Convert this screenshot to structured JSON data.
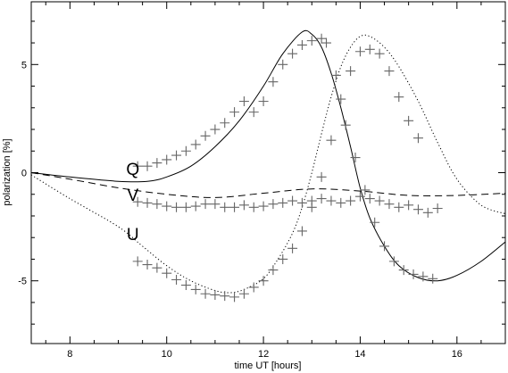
{
  "chart_data": {
    "type": "line",
    "title": "",
    "xlabel": "time UT [hours]",
    "ylabel": "polarization [%]",
    "xlim": [
      7.2,
      17.0
    ],
    "ylim": [
      -7.9,
      7.9
    ],
    "x_ticks": [
      8,
      10,
      12,
      14,
      16
    ],
    "y_ticks": [
      -5,
      0,
      5
    ],
    "x_tick_labels": [
      "8",
      "10",
      "12",
      "14",
      "16"
    ],
    "y_tick_labels": [
      "-5",
      "0",
      "5"
    ],
    "grid": false,
    "legend": "none",
    "curve_labels": [
      {
        "text": "Q",
        "x": 9.3,
        "y": 0.1
      },
      {
        "text": "V",
        "x": 9.3,
        "y": -1.1
      },
      {
        "text": "U",
        "x": 9.3,
        "y": -2.9
      }
    ],
    "series": [
      {
        "kind": "model",
        "style": "solid",
        "points": [
          [
            7.2,
            0.0
          ],
          [
            8.0,
            -0.2
          ],
          [
            9.0,
            -0.4
          ],
          [
            9.6,
            -0.4
          ],
          [
            10.0,
            -0.2
          ],
          [
            10.5,
            0.3
          ],
          [
            11.0,
            1.2
          ],
          [
            11.5,
            2.4
          ],
          [
            12.0,
            4.0
          ],
          [
            12.4,
            5.5
          ],
          [
            12.8,
            6.5
          ],
          [
            13.0,
            6.4
          ],
          [
            13.2,
            5.8
          ],
          [
            13.4,
            4.6
          ],
          [
            13.6,
            3.0
          ],
          [
            13.8,
            1.2
          ],
          [
            14.0,
            -0.7
          ],
          [
            14.2,
            -2.1
          ],
          [
            14.5,
            -3.4
          ],
          [
            14.8,
            -4.3
          ],
          [
            15.2,
            -4.85
          ],
          [
            15.6,
            -5.0
          ],
          [
            16.0,
            -4.75
          ],
          [
            16.5,
            -4.1
          ],
          [
            17.0,
            -3.2
          ]
        ]
      },
      {
        "kind": "model",
        "style": "dotted",
        "points": [
          [
            7.2,
            -0.1
          ],
          [
            8.0,
            -1.2
          ],
          [
            9.0,
            -2.5
          ],
          [
            9.5,
            -3.4
          ],
          [
            10.0,
            -4.3
          ],
          [
            10.5,
            -5.0
          ],
          [
            11.0,
            -5.45
          ],
          [
            11.3,
            -5.55
          ],
          [
            11.6,
            -5.4
          ],
          [
            12.0,
            -4.9
          ],
          [
            12.3,
            -4.0
          ],
          [
            12.6,
            -2.8
          ],
          [
            12.8,
            -1.6
          ],
          [
            13.0,
            0.0
          ],
          [
            13.2,
            1.8
          ],
          [
            13.4,
            3.5
          ],
          [
            13.6,
            4.9
          ],
          [
            13.8,
            5.8
          ],
          [
            14.0,
            6.3
          ],
          [
            14.2,
            6.3
          ],
          [
            14.5,
            5.8
          ],
          [
            14.8,
            4.9
          ],
          [
            15.2,
            3.3
          ],
          [
            15.6,
            1.4
          ],
          [
            16.0,
            -0.3
          ],
          [
            16.5,
            -1.5
          ],
          [
            17.0,
            -1.9
          ]
        ]
      },
      {
        "kind": "model",
        "style": "dashed",
        "points": [
          [
            7.2,
            0.0
          ],
          [
            8.0,
            -0.3
          ],
          [
            9.0,
            -0.7
          ],
          [
            10.0,
            -1.0
          ],
          [
            11.0,
            -1.15
          ],
          [
            12.0,
            -0.95
          ],
          [
            13.0,
            -0.75
          ],
          [
            14.0,
            -0.85
          ],
          [
            15.0,
            -1.05
          ],
          [
            16.0,
            -1.05
          ],
          [
            17.0,
            -0.95
          ]
        ]
      },
      {
        "kind": "observed",
        "marker": "plus",
        "curve": "Q",
        "x": [
          9.4,
          9.6,
          9.8,
          10.0,
          10.2,
          10.4,
          10.6,
          10.8,
          11.0,
          11.2,
          11.4,
          11.6,
          11.8,
          12.0,
          12.2,
          12.4,
          12.6,
          12.8,
          13.0,
          13.2,
          13.3,
          13.5,
          13.7,
          13.9,
          14.1,
          14.3,
          14.5,
          14.7,
          14.9,
          15.1,
          15.3,
          15.5
        ],
        "y": [
          0.3,
          0.3,
          0.45,
          0.6,
          0.8,
          1.0,
          1.3,
          1.7,
          2.0,
          2.3,
          2.8,
          3.3,
          2.8,
          3.3,
          4.2,
          5.0,
          5.5,
          5.9,
          6.1,
          6.2,
          6.0,
          4.5,
          2.2,
          0.7,
          -0.8,
          -2.3,
          -3.4,
          -4.1,
          -4.5,
          -4.7,
          -4.8,
          -4.9
        ]
      },
      {
        "kind": "observed",
        "marker": "plus",
        "curve": "U",
        "x": [
          9.4,
          9.6,
          9.8,
          10.0,
          10.2,
          10.4,
          10.6,
          10.8,
          11.0,
          11.2,
          11.4,
          11.6,
          11.8,
          12.0,
          12.2,
          12.4,
          12.6,
          12.8,
          13.0,
          13.2,
          13.4,
          13.6,
          13.8,
          14.0,
          14.2,
          14.4,
          14.6,
          14.8,
          15.0,
          15.2
        ],
        "y": [
          -4.1,
          -4.25,
          -4.4,
          -4.65,
          -4.95,
          -5.2,
          -5.4,
          -5.6,
          -5.65,
          -5.7,
          -5.75,
          -5.6,
          -5.3,
          -5.0,
          -4.5,
          -4.0,
          -3.5,
          -2.7,
          -1.6,
          -0.2,
          1.5,
          3.4,
          4.7,
          5.6,
          5.7,
          5.5,
          4.7,
          3.5,
          2.4,
          1.6
        ]
      },
      {
        "kind": "observed",
        "marker": "plus",
        "curve": "V",
        "x": [
          9.4,
          9.6,
          9.8,
          10.0,
          10.2,
          10.4,
          10.6,
          10.8,
          11.0,
          11.2,
          11.4,
          11.6,
          11.8,
          12.0,
          12.2,
          12.4,
          12.6,
          12.8,
          13.0,
          13.2,
          13.4,
          13.6,
          13.8,
          14.0,
          14.2,
          14.4,
          14.6,
          14.8,
          15.0,
          15.2,
          15.4,
          15.6
        ],
        "y": [
          -1.35,
          -1.4,
          -1.45,
          -1.55,
          -1.6,
          -1.6,
          -1.55,
          -1.45,
          -1.45,
          -1.6,
          -1.6,
          -1.5,
          -1.6,
          -1.55,
          -1.45,
          -1.4,
          -1.3,
          -1.4,
          -1.3,
          -1.2,
          -1.3,
          -1.4,
          -1.3,
          -1.1,
          -1.2,
          -1.3,
          -1.45,
          -1.6,
          -1.5,
          -1.7,
          -1.85,
          -1.65
        ]
      }
    ]
  }
}
